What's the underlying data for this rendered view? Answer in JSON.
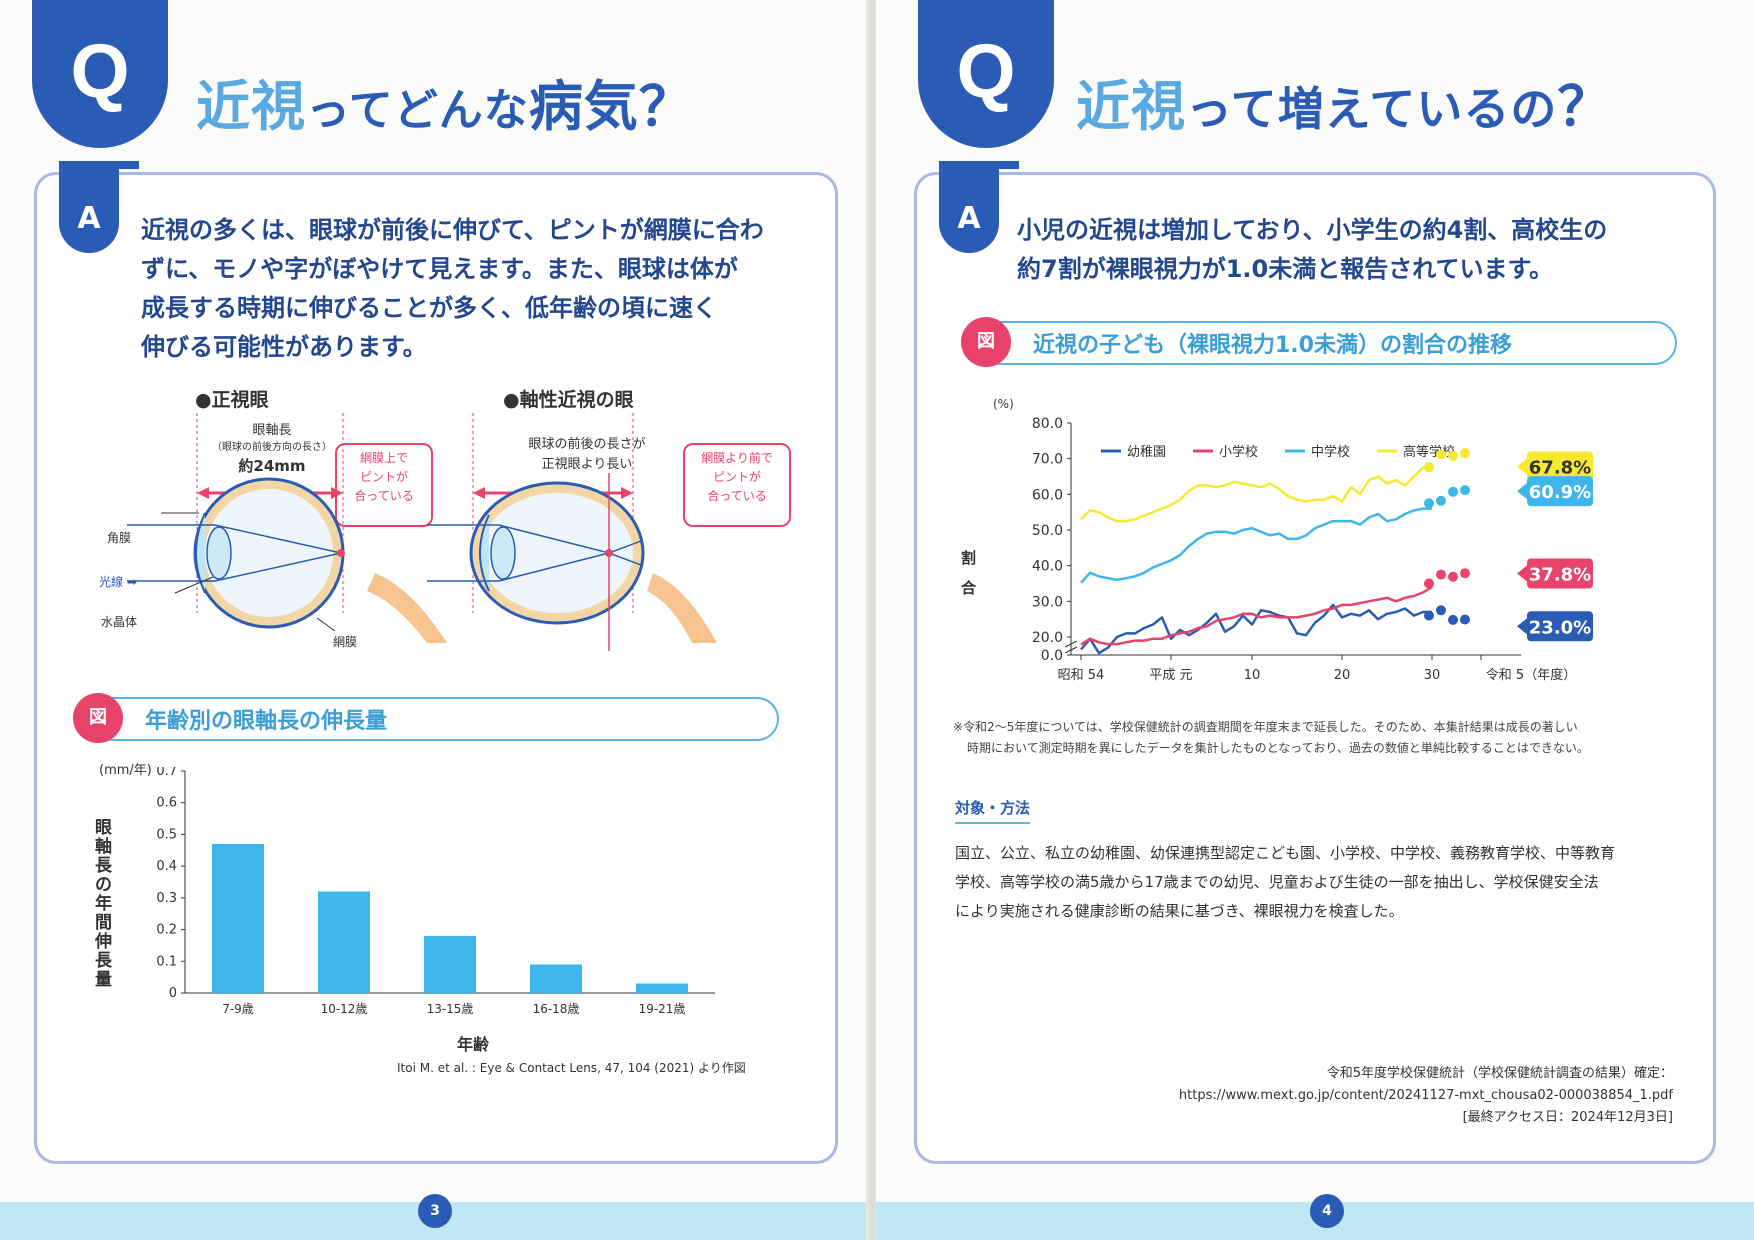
{
  "left_page": {
    "q_letter": "Q",
    "title_highlight": "近視",
    "title_rest_1": "ってどんな",
    "title_highlight_2": "病気",
    "title_q_mark": "？",
    "a_letter": "A",
    "answer_lines": [
      "近視の多くは、眼球が前後に伸びて、ピントが網膜に合わ",
      "ずに、モノや字がぼやけて見えます。また、眼球は体が",
      "成長する時期に伸びることが多く、低年齢の頃に速く",
      "伸びる可能性があります。"
    ],
    "diagram": {
      "normal_heading": "●正視眼",
      "axial_heading": "●軸性近視の眼",
      "axial_length_label": "眼軸長",
      "axial_length_sub": "（眼球の前後方向の長さ）",
      "axial_length_value": "約24mm",
      "long_eye_label_1": "眼球の前後の長さが",
      "long_eye_label_2": "正視眼より長い",
      "focus_on_retina": [
        "網膜上で",
        "ピントが",
        "合っている"
      ],
      "focus_in_front": [
        "網膜より前で",
        "ピントが",
        "合っている"
      ],
      "cornea": "角膜",
      "light_ray": "光線",
      "lens": "水晶体",
      "retina": "網膜"
    },
    "figure_badge": "図",
    "figure_title": "年齢別の眼軸長の伸長量",
    "page_number": "3",
    "colors": {
      "primary": "#2a5cb5",
      "accent": "#e8436b",
      "bar": "#3fb6ea",
      "card_border": "#a9b8e6"
    }
  },
  "right_page": {
    "q_letter": "Q",
    "title_highlight": "近視",
    "title_rest": "って増えているの",
    "title_q_mark": "？",
    "a_letter": "A",
    "answer_lines": [
      "小児の近視は増加しており、小学生の約4割、高校生の",
      "約7割が裸眼視力が1.0未満と報告されています。"
    ],
    "figure_badge": "図",
    "figure_title": "近視の子ども（裸眼視力1.0未満）の割合の推移",
    "note_lines": [
      "※令和2〜5年度については、学校保健統計の調査期間を年度末まで延長した。そのため、本集計結果は成長の著しい",
      "時期において測定時期を異にしたデータを集計したものとなっており、過去の数値と単純比較することはできない。"
    ],
    "method_heading": "対象・方法",
    "method_lines": [
      "国立、公立、私立の幼稚園、幼保連携型認定こども園、小学校、中学校、義務教育学校、中等教育",
      "学校、高等学校の満5歳から17歳までの幼児、児童および生徒の一部を抽出し、学校保健安全法",
      "により実施される健康診断の結果に基づき、裸眼視力を検査した。"
    ],
    "source_lines": [
      "令和5年度学校保健統計（学校保健統計調査の結果）確定：",
      "https://www.mext.go.jp/content/20241127-mxt_chousa02-000038854_1.pdf",
      "[最終アクセス日：2024年12月3日]"
    ],
    "page_number": "4"
  },
  "chart_data": [
    {
      "type": "bar",
      "title": "",
      "ylabel": "眼軸長の年間伸長量",
      "yunit": "(mm/年)",
      "xlabel": "年齢",
      "categories": [
        "7-9歳",
        "10-12歳",
        "13-15歳",
        "16-18歳",
        "19-21歳"
      ],
      "values": [
        0.47,
        0.32,
        0.18,
        0.09,
        0.03
      ],
      "ylim": [
        0,
        0.7
      ],
      "yticks": [
        "0",
        "0.1",
        "0.2",
        "0.3",
        "0.4",
        "0.5",
        "0.6",
        "0.7"
      ],
      "source": "Itoi M. et al. : Eye & Contact Lens, 47, 104 (2021) より作図",
      "color": "#3fb6ea"
    },
    {
      "type": "line",
      "ylabel": "割合",
      "yunit": "(%)",
      "ylim": [
        0,
        80
      ],
      "yticks": [
        "0.0",
        "20.0",
        "30.0",
        "40.0",
        "50.0",
        "60.0",
        "70.0",
        "80.0"
      ],
      "xticks": [
        "昭和 54",
        "平成 元",
        "10",
        "20",
        "30",
        "令和 5（年度）"
      ],
      "x": [
        "S54",
        "S55",
        "S56",
        "S57",
        "S58",
        "S59",
        "S60",
        "S61",
        "S62",
        "S63",
        "H1",
        "H2",
        "H3",
        "H4",
        "H5",
        "H6",
        "H7",
        "H8",
        "H9",
        "H10",
        "H11",
        "H12",
        "H13",
        "H14",
        "H15",
        "H16",
        "H17",
        "H18",
        "H19",
        "H20",
        "H21",
        "H22",
        "H23",
        "H24",
        "H25",
        "H26",
        "H27",
        "H28",
        "H29",
        "H30",
        "R1",
        "R2",
        "R3",
        "R4",
        "R5"
      ],
      "series": [
        {
          "name": "幼稚園",
          "color": "#2a5cb5",
          "values": [
            16.5,
            19.5,
            15.5,
            17.0,
            20.0,
            21.0,
            21.0,
            22.5,
            23.5,
            25.5,
            19.5,
            22.0,
            20.5,
            22.0,
            24.0,
            26.5,
            21.5,
            23.0,
            26.0,
            23.5,
            27.5,
            27.0,
            26.0,
            25.5,
            21.0,
            20.5,
            24.0,
            26.0,
            29.0,
            25.5,
            26.5,
            26.0,
            27.5,
            25.0,
            26.5,
            27.0,
            28.0,
            26.0,
            27.0,
            27.0,
            26.0,
            27.5,
            24.8,
            24.9,
            23.0
          ]
        },
        {
          "name": "小学校",
          "color": "#e8436b",
          "values": [
            17.9,
            19.5,
            18.5,
            18.0,
            18.0,
            18.5,
            19.0,
            19.0,
            19.5,
            19.5,
            20.5,
            21.0,
            21.5,
            22.5,
            23.0,
            24.5,
            25.0,
            25.5,
            26.5,
            26.5,
            25.5,
            26.0,
            25.5,
            25.5,
            25.5,
            26.0,
            26.5,
            27.5,
            28.0,
            29.0,
            29.0,
            29.5,
            30.0,
            30.5,
            31.0,
            30.0,
            31.0,
            31.5,
            32.5,
            34.0,
            35.0,
            37.5,
            36.9,
            37.9,
            37.8
          ]
        },
        {
          "name": "中学校",
          "color": "#3fb6ea",
          "values": [
            35.2,
            38.0,
            37.0,
            36.5,
            36.0,
            36.5,
            37.0,
            38.0,
            39.5,
            40.5,
            41.5,
            43.0,
            45.5,
            47.5,
            49.0,
            49.5,
            49.5,
            49.0,
            50.0,
            50.5,
            49.5,
            48.5,
            49.0,
            47.5,
            47.5,
            48.5,
            50.5,
            51.5,
            52.5,
            52.5,
            52.5,
            51.5,
            53.5,
            54.5,
            52.5,
            53.0,
            54.5,
            55.5,
            56.0,
            56.0,
            57.5,
            58.2,
            60.7,
            61.2,
            60.9
          ]
        },
        {
          "name": "高等学校",
          "color": "#f7e930",
          "values": [
            53.0,
            55.5,
            55.0,
            53.5,
            52.5,
            52.5,
            53.0,
            54.0,
            55.0,
            56.0,
            57.0,
            58.5,
            61.0,
            62.5,
            62.5,
            62.0,
            62.5,
            63.5,
            63.0,
            62.5,
            62.0,
            63.0,
            61.5,
            59.5,
            58.5,
            58.0,
            58.5,
            58.5,
            59.5,
            58.0,
            62.0,
            60.0,
            64.0,
            65.0,
            63.0,
            64.0,
            62.5,
            65.0,
            67.5,
            67.0,
            67.6,
            71.2,
            70.8,
            71.5,
            67.8
          ]
        }
      ],
      "end_labels": [
        {
          "series": "高等学校",
          "label": "67.8%",
          "bg": "#f7e930",
          "fg": "#333333"
        },
        {
          "series": "中学校",
          "label": "60.9%",
          "bg": "#3fb6ea",
          "fg": "#ffffff"
        },
        {
          "series": "小学校",
          "label": "37.8%",
          "bg": "#e8436b",
          "fg": "#ffffff"
        },
        {
          "series": "幼稚園",
          "label": "23.0%",
          "bg": "#2a5cb5",
          "fg": "#ffffff"
        }
      ]
    }
  ]
}
